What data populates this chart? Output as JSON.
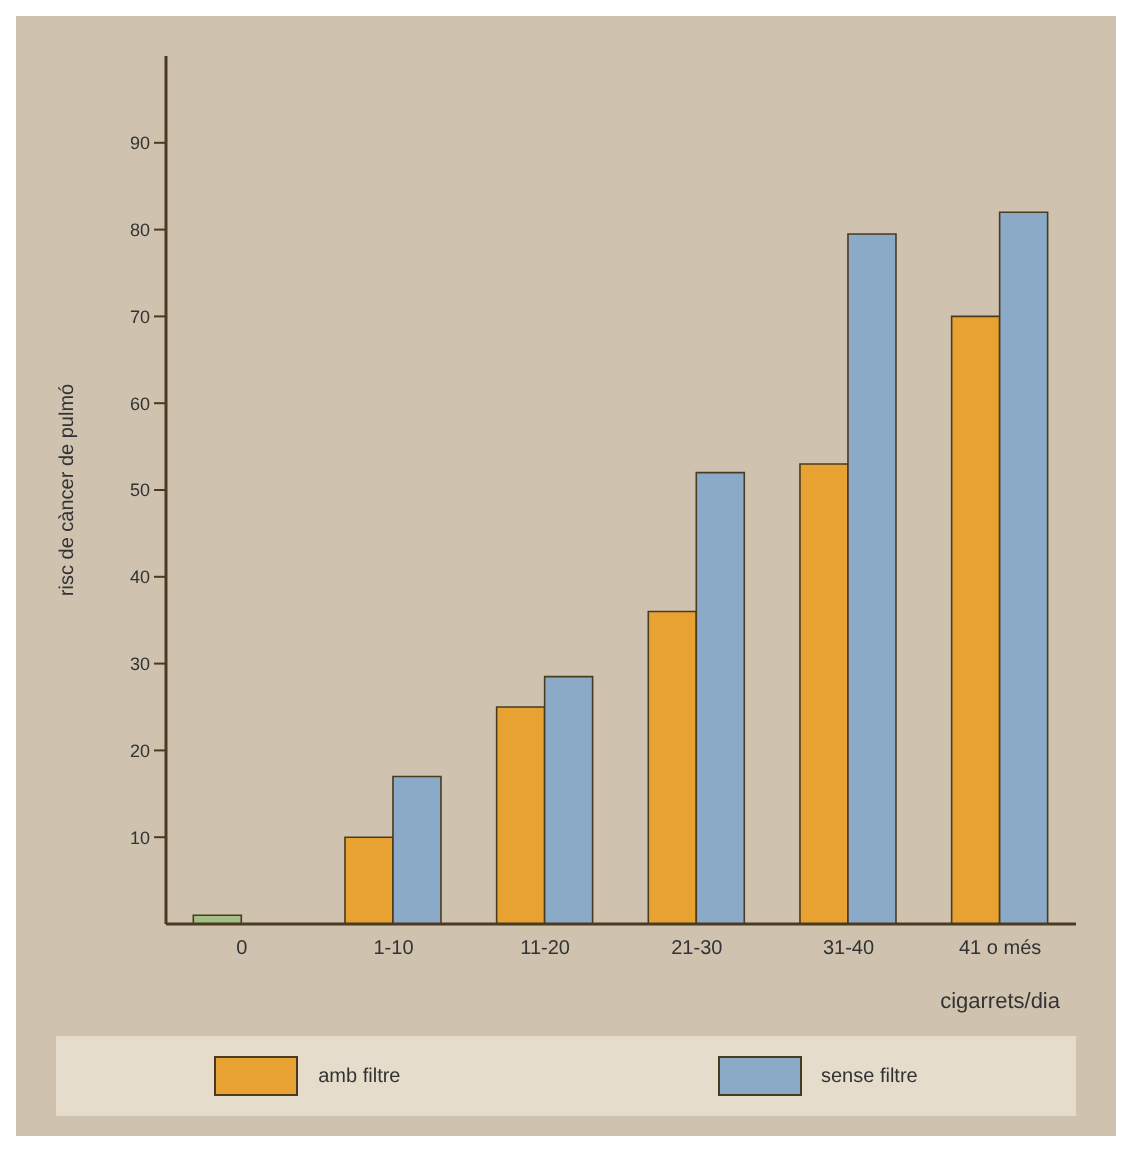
{
  "chart_data": {
    "type": "bar",
    "ylabel": "risc de càncer de pulmó",
    "xlabel": "cigarrets/dia",
    "categories": [
      "0",
      "1-10",
      "11-20",
      "21-30",
      "31-40",
      "41 o més"
    ],
    "series": [
      {
        "name": "amb filtre",
        "color": "#e8a232",
        "values": [
          null,
          10,
          25,
          36,
          53,
          70
        ]
      },
      {
        "name": "sense filtre",
        "color": "#8aaac8",
        "values": [
          null,
          17,
          28.5,
          52,
          79.5,
          82
        ]
      },
      {
        "color": "#a3bf85",
        "values": [
          1,
          null,
          null,
          null,
          null,
          null
        ]
      }
    ],
    "ylim": [
      0,
      100
    ],
    "yticks": [
      10,
      20,
      30,
      40,
      50,
      60,
      70,
      80,
      90
    ],
    "grid": false,
    "legend": "bottom"
  }
}
